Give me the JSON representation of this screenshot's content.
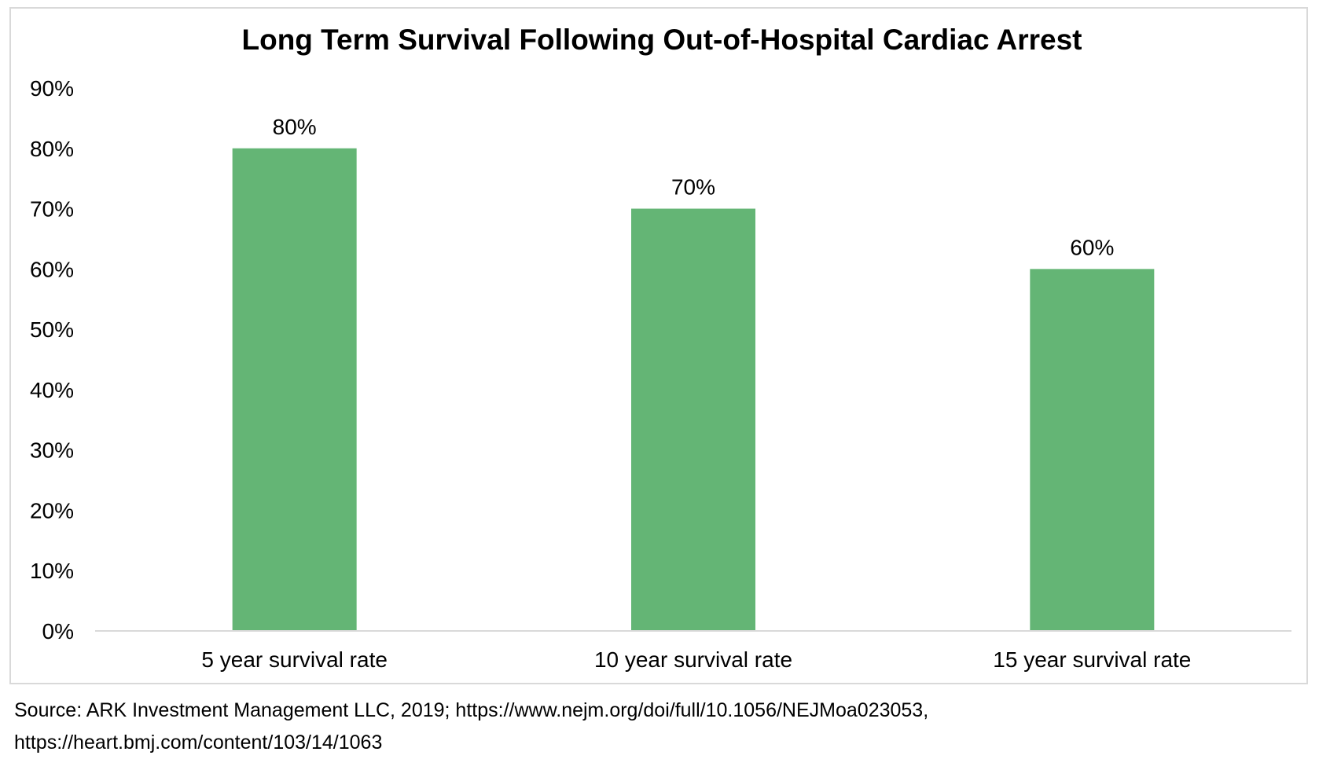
{
  "chart_data": {
    "type": "bar",
    "title": "Long Term Survival Following Out-of-Hospital Cardiac Arrest",
    "categories": [
      "5 year survival rate",
      "10 year survival rate",
      "15 year survival rate"
    ],
    "values": [
      80,
      70,
      60
    ],
    "data_labels": [
      "80%",
      "70%",
      "60%"
    ],
    "y_ticks": [
      "0%",
      "10%",
      "20%",
      "30%",
      "40%",
      "50%",
      "60%",
      "70%",
      "80%",
      "90%"
    ],
    "ylim": [
      0,
      90
    ],
    "y_unit": "%",
    "xlabel": "",
    "ylabel": "",
    "grid": false,
    "legend": "none",
    "bar_color": "#64b575",
    "axis_color": "#d9d9d9"
  },
  "source_note": "Source: ARK Investment Management LLC, 2019; https://www.nejm.org/doi/full/10.1056/NEJMoa023053,\nhttps://heart.bmj.com/content/103/14/1063"
}
